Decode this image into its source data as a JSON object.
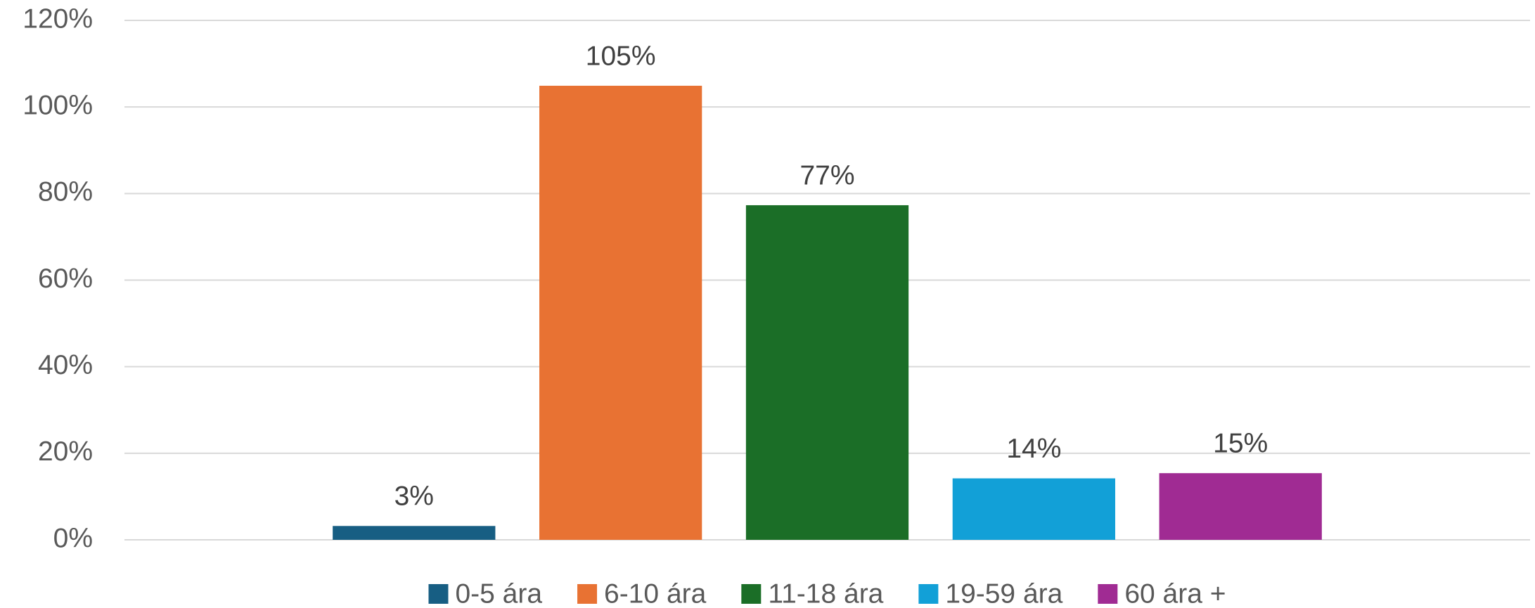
{
  "chart_data": {
    "type": "bar",
    "categories": [
      null
    ],
    "series": [
      {
        "name": "0-5 ára",
        "color": "#175e83",
        "values": [
          3.2
        ],
        "value_labels": [
          "3%"
        ]
      },
      {
        "name": "6-10 ára",
        "color": "#e87233",
        "values": [
          104.9
        ],
        "value_labels": [
          "105%"
        ]
      },
      {
        "name": "11-18 ára",
        "color": "#1b6e27",
        "values": [
          77.3
        ],
        "value_labels": [
          "77%"
        ]
      },
      {
        "name": "19-59 ára",
        "color": "#12a0d7",
        "values": [
          14.2
        ],
        "value_labels": [
          "14%"
        ]
      },
      {
        "name": "60 ára +",
        "color": "#a02b93",
        "values": [
          15.4
        ],
        "value_labels": [
          "15%"
        ]
      }
    ],
    "ylim": [
      0,
      120
    ],
    "yticks": [
      {
        "value": 0,
        "label": "0%"
      },
      {
        "value": 20,
        "label": "20%"
      },
      {
        "value": 40,
        "label": "40%"
      },
      {
        "value": 60,
        "label": "60%"
      },
      {
        "value": 80,
        "label": "80%"
      },
      {
        "value": 100,
        "label": "100%"
      },
      {
        "value": 120,
        "label": "120%"
      }
    ],
    "grid": true,
    "legend": "bottom"
  }
}
